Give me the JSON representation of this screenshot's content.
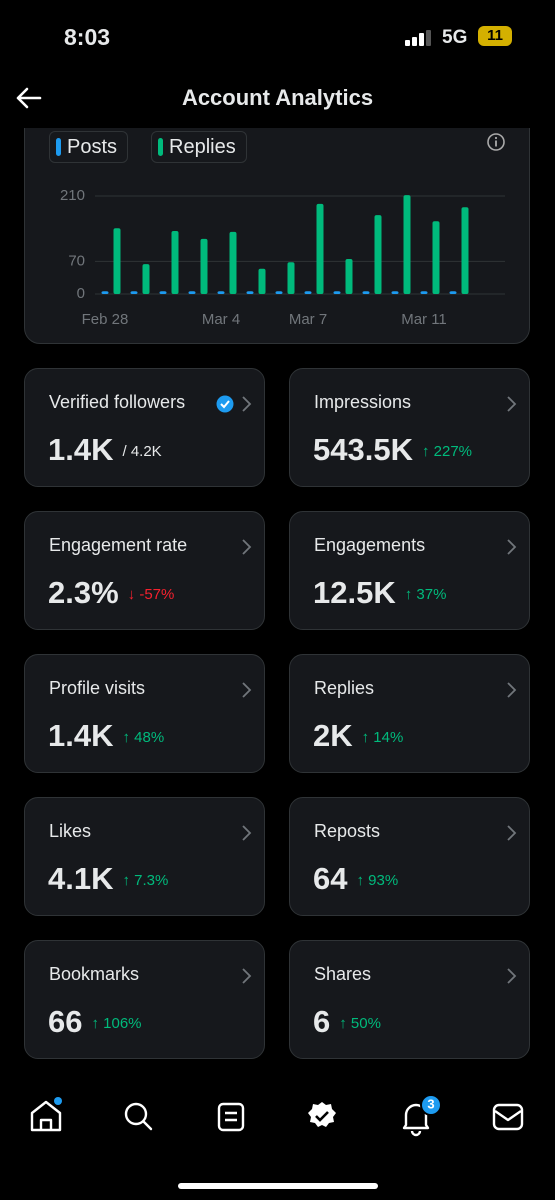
{
  "status_bar": {
    "time": "8:03",
    "network": "5G",
    "battery": "11"
  },
  "header": {
    "title": "Account Analytics"
  },
  "chart_data": {
    "type": "bar",
    "categories": [
      "Feb 28",
      null,
      null,
      null,
      "Mar 4",
      null,
      null,
      "Mar 7",
      null,
      null,
      null,
      "Mar 11",
      null
    ],
    "series": [
      {
        "name": "Posts",
        "color": "#1d9bf0",
        "values": [
          6,
          6,
          6,
          6,
          6,
          6,
          6,
          6,
          6,
          6,
          6,
          6,
          6
        ]
      },
      {
        "name": "Replies",
        "color": "#00ba7c",
        "values": [
          141,
          64,
          135,
          118,
          133,
          54,
          68,
          193,
          75,
          169,
          212,
          156,
          186
        ]
      }
    ],
    "ylim": [
      0,
      210
    ],
    "yticks": [
      0,
      70,
      210
    ],
    "grid": true
  },
  "cards": [
    {
      "title": "Verified followers",
      "value": "1.4K",
      "sub": "/ 4.2K"
    },
    {
      "title": "Impressions",
      "value": "543.5K",
      "change": "↑ 227%"
    },
    {
      "title": "Engagement rate",
      "value": "2.3%",
      "change": "↓ -57%"
    },
    {
      "title": "Engagements",
      "value": "12.5K",
      "change": "↑ 37%"
    },
    {
      "title": "Profile visits",
      "value": "1.4K",
      "change": "↑ 48%"
    },
    {
      "title": "Replies",
      "value": "2K",
      "change": "↑ 14%"
    },
    {
      "title": "Likes",
      "value": "4.1K",
      "change": "↑ 7.3%"
    },
    {
      "title": "Reposts",
      "value": "64",
      "change": "↑ 93%"
    },
    {
      "title": "Bookmarks",
      "value": "66",
      "change": "↑ 106%"
    },
    {
      "title": "Shares",
      "value": "6",
      "change": "↑ 50%"
    }
  ],
  "nav": {
    "notifications_badge": "3"
  }
}
